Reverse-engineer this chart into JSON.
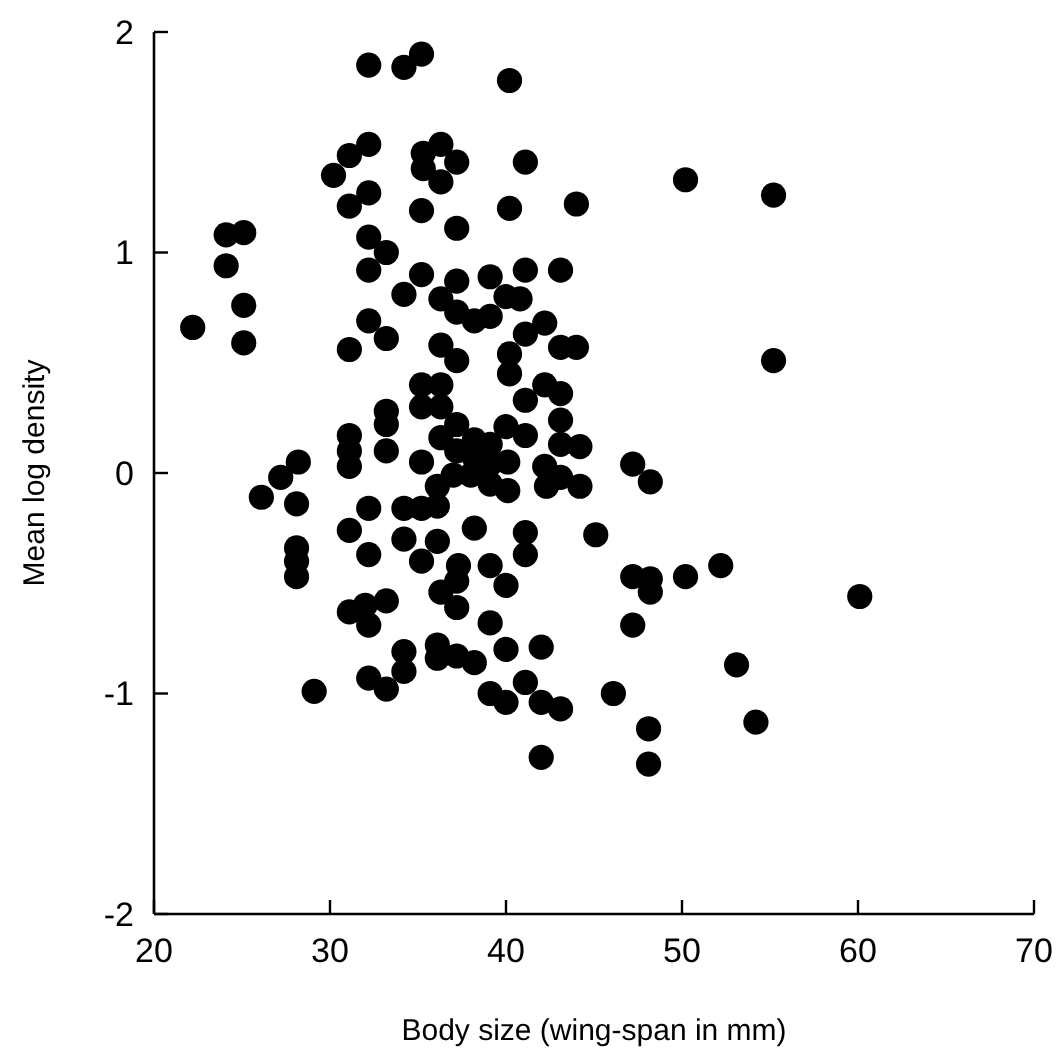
{
  "chart_data": {
    "type": "scatter",
    "xlabel": "Body size (wing-span in mm)",
    "ylabel": "Mean log density",
    "xlim": [
      20,
      70
    ],
    "ylim": [
      -2,
      2
    ],
    "xticks": [
      20,
      30,
      40,
      50,
      60,
      70
    ],
    "yticks": [
      -2,
      -1,
      0,
      1,
      2
    ],
    "marker": "circle",
    "series": [
      {
        "color": "#000000",
        "x": [
          32.2,
          34.2,
          35.2,
          40.2,
          30.2,
          31.1,
          32.2,
          35.3,
          36.3,
          37.2,
          35.3,
          36.3,
          41.1,
          31.1,
          32.2,
          35.2,
          37.2,
          40.2,
          44.0,
          24.1,
          25.1,
          24.1,
          25.1,
          25.1,
          22.2,
          32.2,
          33.2,
          32.2,
          35.2,
          34.2,
          37.2,
          39.1,
          41.1,
          43.1,
          36.3,
          37.2,
          38.2,
          39.1,
          40.0,
          40.8,
          41.1,
          42.2,
          32.2,
          33.2,
          31.1,
          36.3,
          37.2,
          40.2,
          40.2,
          43.1,
          44.0,
          35.2,
          36.3,
          42.2,
          43.1,
          33.2,
          33.2,
          35.2,
          36.3,
          41.1,
          37.2,
          38.2,
          39.1,
          40.0,
          43.1,
          31.1,
          31.1,
          31.1,
          33.2,
          35.2,
          41.1,
          43.1,
          44.2,
          42.2,
          28.2,
          27.2,
          26.1,
          55.2,
          50.2,
          55.2,
          44.2,
          43.1,
          38.0,
          39.1,
          40.1,
          47.2,
          48.2,
          28.1,
          28.1,
          28.1,
          28.1,
          31.1,
          32.2,
          32.2,
          34.2,
          35.2,
          36.1,
          36.1,
          34.2,
          35.2,
          36.1,
          38.2,
          37.3,
          37.2,
          36.3,
          37.2,
          39.1,
          40.0,
          41.1,
          41.1,
          42.3,
          37.0,
          31.1,
          32.0,
          33.2,
          32.2,
          39.1,
          34.2,
          34.2,
          36.1,
          36.1,
          37.2,
          38.2,
          40.0,
          42.0,
          32.2,
          33.2,
          29.1,
          41.1,
          39.1,
          40.0,
          42.0,
          43.1,
          42.0,
          45.1,
          47.2,
          48.2,
          48.2,
          50.2,
          52.2,
          60.1,
          47.2,
          53.1,
          46.1,
          48.1,
          54.2,
          48.1,
          37.2,
          38.2,
          39.1,
          40.1,
          36.3
        ],
        "values": [
          1.85,
          1.84,
          1.9,
          1.78,
          1.35,
          1.44,
          1.49,
          1.45,
          1.49,
          1.41,
          1.38,
          1.32,
          1.41,
          1.21,
          1.27,
          1.19,
          1.11,
          1.2,
          1.22,
          1.08,
          1.09,
          0.94,
          0.76,
          0.59,
          0.66,
          1.07,
          1.0,
          0.92,
          0.9,
          0.81,
          0.87,
          0.89,
          0.92,
          0.92,
          0.79,
          0.73,
          0.69,
          0.71,
          0.8,
          0.79,
          0.63,
          0.68,
          0.69,
          0.61,
          0.56,
          0.58,
          0.51,
          0.54,
          0.45,
          0.57,
          0.57,
          0.4,
          0.4,
          0.4,
          0.36,
          0.28,
          0.22,
          0.3,
          0.3,
          0.33,
          0.22,
          0.15,
          0.13,
          0.21,
          0.24,
          0.17,
          0.1,
          0.03,
          0.1,
          0.05,
          0.17,
          0.13,
          0.12,
          0.03,
          0.05,
          -0.02,
          -0.11,
          0.51,
          1.33,
          1.26,
          -0.06,
          -0.02,
          -0.01,
          -0.05,
          -0.08,
          0.04,
          -0.04,
          -0.14,
          -0.34,
          -0.4,
          -0.47,
          -0.26,
          -0.16,
          -0.37,
          -0.16,
          -0.16,
          -0.15,
          -0.06,
          -0.3,
          -0.4,
          -0.31,
          -0.25,
          -0.42,
          -0.49,
          -0.54,
          -0.61,
          -0.42,
          -0.51,
          -0.27,
          -0.37,
          -0.06,
          -0.01,
          -0.63,
          -0.6,
          -0.58,
          -0.69,
          -0.68,
          -0.81,
          -0.9,
          -0.78,
          -0.84,
          -0.83,
          -0.86,
          -0.8,
          -0.79,
          -0.93,
          -0.98,
          -0.99,
          -0.95,
          -1.0,
          -1.04,
          -1.04,
          -1.07,
          -1.29,
          -0.28,
          -0.47,
          -0.48,
          -0.54,
          -0.47,
          -0.42,
          -0.56,
          -0.69,
          -0.87,
          -1.0,
          -1.16,
          -1.13,
          -1.32,
          0.1,
          0.07,
          0.04,
          0.05,
          0.16
        ]
      }
    ]
  }
}
